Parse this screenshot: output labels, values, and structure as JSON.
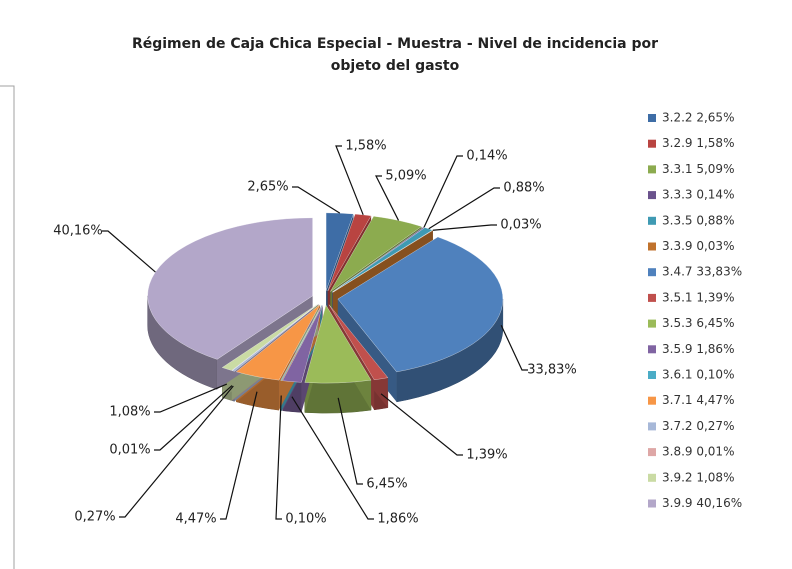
{
  "chart_data": {
    "type": "pie",
    "title": "Régimen de Caja Chica Especial - Muestra - Nivel de incidencia por",
    "subtitle": "objeto del gasto",
    "categories": [
      "3.2.2 2,65%",
      "3.2.9 1,58%",
      "3.3.1 5,09%",
      "3.3.3 0,14%",
      "3.3.5 0,88%",
      "3.3.9 0,03%",
      "3.4.7 33,83%",
      "3.5.1 1,39%",
      "3.5.3 6,45%",
      "3.5.9 1,86%",
      "3.6.1 0,10%",
      "3.7.1 4,47%",
      "3.7.2 0,27%",
      "3.8.9 0,01%",
      "3.9.2 1,08%",
      "3.9.9 40,16%"
    ],
    "values": [
      2.65,
      1.58,
      5.09,
      0.14,
      0.88,
      0.03,
      33.83,
      1.39,
      6.45,
      1.86,
      0.1,
      4.47,
      0.27,
      0.01,
      1.08,
      40.16
    ],
    "value_labels": [
      "2,65%",
      "1,58%",
      "5,09%",
      "0,14%",
      "0,88%",
      "0,03%",
      "33,83%",
      "1,39%",
      "6,45%",
      "1,86%",
      "0,10%",
      "4,47%",
      "0,27%",
      "0,01%",
      "1,08%",
      "40,16%"
    ],
    "colors": [
      "#3e6da6",
      "#b94441",
      "#8cab4f",
      "#6a528c",
      "#3f9ab3",
      "#c0722c",
      "#4f81bd",
      "#c0504d",
      "#9bbb59",
      "#8064a2",
      "#4bacc6",
      "#f79646",
      "#a7b8d8",
      "#dea7a6",
      "#cadba4",
      "#b3a7c9"
    ],
    "legend": "right"
  }
}
